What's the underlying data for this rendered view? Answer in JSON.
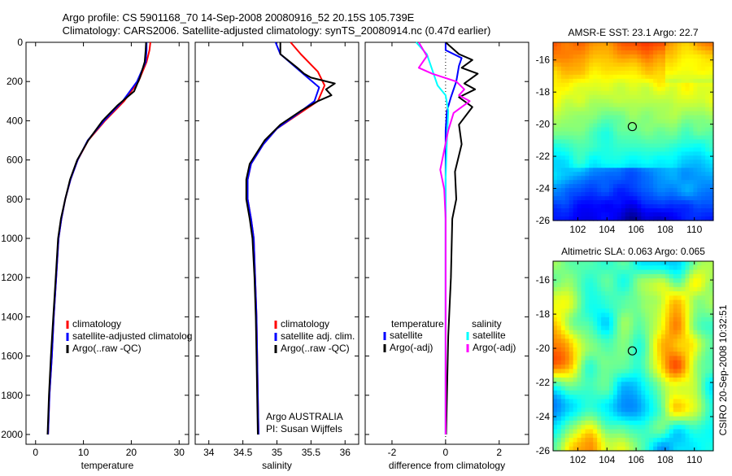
{
  "figure": {
    "title_line1": "Argo profile: CS 5901168_70 14-Sep-2008 20080916_52 20.15S 105.739E",
    "title_line2": "Climatology: CARS2006. Satellite-adjusted climatology: synTS_20080914.nc (0.47d earlier)",
    "side_label": "CSIRO  20-Sep-2008 10:32:51"
  },
  "chart_data": [
    {
      "id": "temperature",
      "type": "line",
      "xlabel": "temperature",
      "ylabel": "",
      "xlim": [
        -2,
        32
      ],
      "ylim": [
        2050,
        0
      ],
      "xticks": [
        0,
        10,
        20,
        30
      ],
      "yticks": [
        0,
        200,
        400,
        600,
        800,
        1000,
        1200,
        1400,
        1600,
        1800,
        2000
      ],
      "legend": [
        "climatology",
        "satellite-adjusted climatology",
        "Argo(..raw -QC)"
      ],
      "series": [
        {
          "name": "climatology",
          "color": "#ff0000",
          "points": [
            [
              24,
              0
            ],
            [
              23.8,
              40
            ],
            [
              23.2,
              100
            ],
            [
              21.5,
              200
            ],
            [
              18.5,
              300
            ],
            [
              14.5,
              400
            ],
            [
              11,
              500
            ],
            [
              8.8,
              600
            ],
            [
              7.3,
              700
            ],
            [
              6.2,
              800
            ],
            [
              5.4,
              900
            ],
            [
              4.8,
              1000
            ],
            [
              4.3,
              1200
            ],
            [
              3.8,
              1400
            ],
            [
              3.4,
              1600
            ],
            [
              2.9,
              1800
            ],
            [
              2.6,
              2000
            ]
          ]
        },
        {
          "name": "satellite-adjusted climatology",
          "color": "#0000ff",
          "points": [
            [
              23.2,
              0
            ],
            [
              23.2,
              40
            ],
            [
              23,
              100
            ],
            [
              21.2,
              200
            ],
            [
              18.2,
              300
            ],
            [
              14.3,
              400
            ],
            [
              10.9,
              500
            ],
            [
              8.8,
              600
            ],
            [
              7.3,
              700
            ],
            [
              6.2,
              800
            ],
            [
              5.4,
              900
            ],
            [
              4.8,
              1000
            ],
            [
              4.3,
              1200
            ],
            [
              3.8,
              1400
            ],
            [
              3.4,
              1600
            ],
            [
              2.9,
              1800
            ],
            [
              2.6,
              2000
            ]
          ]
        },
        {
          "name": "Argo(..raw -QC)",
          "color": "#000000",
          "points": [
            [
              23.1,
              0
            ],
            [
              23,
              40
            ],
            [
              22.8,
              100
            ],
            [
              21.8,
              180
            ],
            [
              20.6,
              250
            ],
            [
              17.2,
              320
            ],
            [
              14,
              400
            ],
            [
              11,
              500
            ],
            [
              8.7,
              600
            ],
            [
              7.2,
              700
            ],
            [
              6.2,
              800
            ],
            [
              5.3,
              900
            ],
            [
              4.7,
              1000
            ],
            [
              4.2,
              1200
            ],
            [
              3.7,
              1400
            ],
            [
              3.2,
              1600
            ],
            [
              2.8,
              1800
            ],
            [
              2.5,
              2000
            ]
          ]
        }
      ]
    },
    {
      "id": "salinity",
      "type": "line",
      "xlabel": "salinity",
      "ylabel": "",
      "xlim": [
        33.8,
        36.2
      ],
      "ylim": [
        2050,
        0
      ],
      "xticks": [
        34,
        34.5,
        35,
        35.5,
        36
      ],
      "yticks": [
        0,
        200,
        400,
        600,
        800,
        1000,
        1200,
        1400,
        1600,
        1800,
        2000
      ],
      "legend": [
        "climatology",
        "satellite adj. clim.",
        "Argo(..raw -QC)"
      ],
      "annotation": [
        "Argo AUSTRALIA",
        "PI: Susan Wijffels"
      ],
      "series": [
        {
          "name": "climatology",
          "color": "#ff0000",
          "points": [
            [
              35.2,
              0
            ],
            [
              35.35,
              60
            ],
            [
              35.6,
              150
            ],
            [
              35.7,
              220
            ],
            [
              35.6,
              300
            ],
            [
              35.3,
              370
            ],
            [
              35.0,
              440
            ],
            [
              34.8,
              520
            ],
            [
              34.62,
              620
            ],
            [
              34.57,
              700
            ],
            [
              34.57,
              800
            ],
            [
              34.62,
              900
            ],
            [
              34.66,
              1000
            ],
            [
              34.68,
              1200
            ],
            [
              34.7,
              1400
            ],
            [
              34.71,
              1600
            ],
            [
              34.72,
              1800
            ],
            [
              34.73,
              2000
            ]
          ]
        },
        {
          "name": "satellite adj. clim.",
          "color": "#0000ff",
          "points": [
            [
              34.98,
              0
            ],
            [
              35.05,
              60
            ],
            [
              35.35,
              150
            ],
            [
              35.62,
              230
            ],
            [
              35.55,
              300
            ],
            [
              35.28,
              370
            ],
            [
              35.0,
              440
            ],
            [
              34.8,
              520
            ],
            [
              34.62,
              620
            ],
            [
              34.57,
              700
            ],
            [
              34.57,
              800
            ],
            [
              34.62,
              900
            ],
            [
              34.66,
              1000
            ],
            [
              34.68,
              1200
            ],
            [
              34.7,
              1400
            ],
            [
              34.71,
              1600
            ],
            [
              34.72,
              1800
            ],
            [
              34.73,
              2000
            ]
          ]
        },
        {
          "name": "Argo(..raw -QC)",
          "color": "#000000",
          "points": [
            [
              35.05,
              0
            ],
            [
              35.05,
              60
            ],
            [
              35.3,
              130
            ],
            [
              35.4,
              160
            ],
            [
              35.5,
              180
            ],
            [
              35.85,
              210
            ],
            [
              35.72,
              240
            ],
            [
              35.8,
              270
            ],
            [
              35.6,
              300
            ],
            [
              35.35,
              350
            ],
            [
              35.05,
              420
            ],
            [
              34.82,
              500
            ],
            [
              34.6,
              620
            ],
            [
              34.55,
              700
            ],
            [
              34.55,
              800
            ],
            [
              34.6,
              900
            ],
            [
              34.64,
              1000
            ],
            [
              34.67,
              1200
            ],
            [
              34.69,
              1400
            ],
            [
              34.7,
              1600
            ],
            [
              34.71,
              1800
            ],
            [
              34.72,
              2000
            ]
          ]
        }
      ]
    },
    {
      "id": "difference",
      "type": "line",
      "xlabel": "difference from climatology",
      "ylabel": "",
      "xlim": [
        -3,
        3.1
      ],
      "ylim": [
        2050,
        0
      ],
      "xticks": [
        -2,
        0,
        2
      ],
      "yticks": [
        0,
        200,
        400,
        600,
        800,
        1000,
        1200,
        1400,
        1600,
        1800,
        2000
      ],
      "legend_left_title": "temperature",
      "legend_left": [
        "satellite",
        "Argo(-adj)"
      ],
      "legend_right_title": "salinity",
      "legend_right": [
        "satellite",
        "Argo(-adj)"
      ],
      "series": [
        {
          "name": "temperature satellite",
          "color": "#0000ff",
          "points": [
            [
              0,
              0
            ],
            [
              0,
              40
            ],
            [
              0.6,
              80
            ],
            [
              0.5,
              120
            ],
            [
              0.4,
              200
            ],
            [
              0.2,
              280
            ],
            [
              0.05,
              350
            ],
            [
              0,
              450
            ],
            [
              0,
              2000
            ]
          ]
        },
        {
          "name": "temperature Argo(-adj)",
          "color": "#000000",
          "points": [
            [
              0,
              0
            ],
            [
              0.5,
              60
            ],
            [
              1,
              90
            ],
            [
              0.6,
              130
            ],
            [
              1.2,
              160
            ],
            [
              0.7,
              210
            ],
            [
              1.1,
              240
            ],
            [
              0.5,
              280
            ],
            [
              1,
              330
            ],
            [
              0.5,
              420
            ],
            [
              0.6,
              520
            ],
            [
              0.35,
              660
            ],
            [
              0.4,
              800
            ],
            [
              0.25,
              900
            ],
            [
              0.2,
              1200
            ],
            [
              0.1,
              1500
            ],
            [
              0.05,
              1800
            ],
            [
              0.02,
              2000
            ]
          ]
        },
        {
          "name": "salinity satellite",
          "color": "#00ffff",
          "points": [
            [
              -1.1,
              0
            ],
            [
              -0.7,
              60
            ],
            [
              -0.5,
              140
            ],
            [
              -0.3,
              220
            ],
            [
              0,
              270
            ],
            [
              0.1,
              350
            ],
            [
              0.05,
              500
            ],
            [
              0,
              700
            ],
            [
              0,
              2000
            ]
          ]
        },
        {
          "name": "salinity Argo(-adj)",
          "color": "#ff00ff",
          "points": [
            [
              -1.0,
              0
            ],
            [
              -0.7,
              70
            ],
            [
              -1.0,
              130
            ],
            [
              -0.5,
              160
            ],
            [
              0.4,
              200
            ],
            [
              0.7,
              240
            ],
            [
              0.5,
              270
            ],
            [
              0.9,
              300
            ],
            [
              0.3,
              360
            ],
            [
              0.1,
              450
            ],
            [
              -0.05,
              550
            ],
            [
              -0.2,
              650
            ],
            [
              -0.05,
              750
            ],
            [
              0,
              900
            ],
            [
              0,
              2000
            ]
          ]
        }
      ]
    },
    {
      "id": "sst_map",
      "type": "heatmap",
      "title": "AMSR-E SST: 23.1 Argo: 22.7",
      "xlim": [
        100.3,
        111.3
      ],
      "ylim": [
        -26,
        -14.9
      ],
      "xticks": [
        102,
        104,
        106,
        108,
        110
      ],
      "yticks": [
        -16,
        -18,
        -20,
        -22,
        -24,
        -26
      ],
      "marker": {
        "lon": 105.739,
        "lat": -20.15
      }
    },
    {
      "id": "sla_map",
      "type": "heatmap",
      "title": "Altimetric SLA: 0.063 Argo: 0.065",
      "xlim": [
        100.3,
        111.3
      ],
      "ylim": [
        -26,
        -14.9
      ],
      "xticks": [
        102,
        104,
        106,
        108,
        110
      ],
      "yticks": [
        -16,
        -18,
        -20,
        -22,
        -24,
        -26
      ],
      "marker": {
        "lon": 105.739,
        "lat": -20.15
      }
    }
  ]
}
